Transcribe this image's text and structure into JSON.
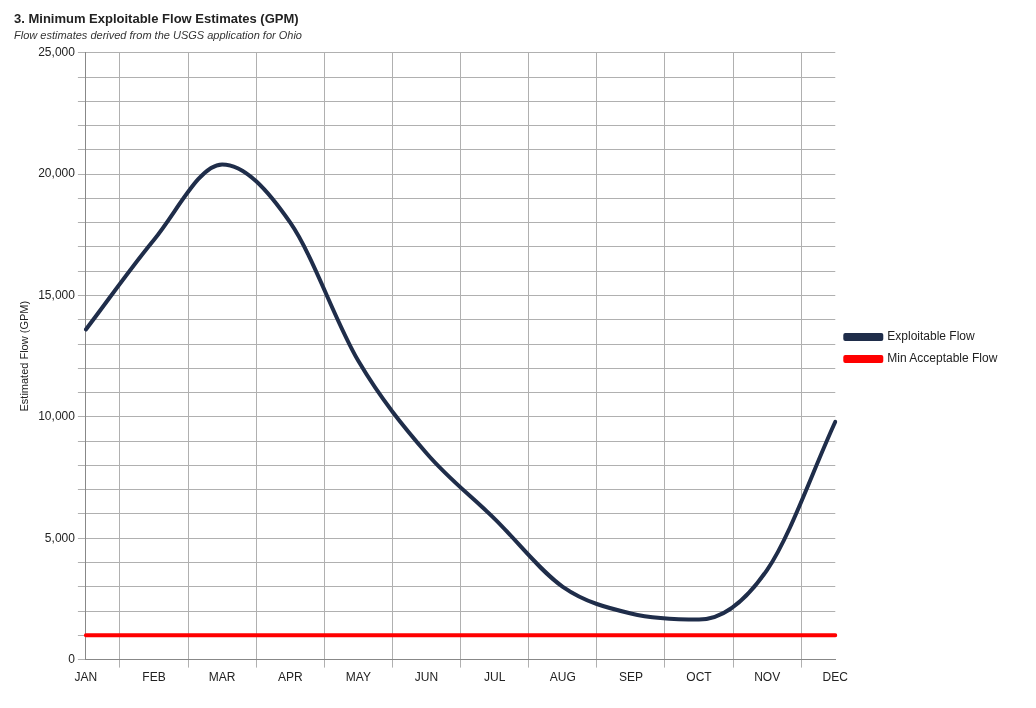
{
  "chart_data": {
    "type": "line",
    "title": "3. Minimum Exploitable Flow Estimates (GPM)",
    "subtitle": "Flow estimates derived from the USGS application for Ohio",
    "ylabel": "Estimated Flow (GPM)",
    "categories": [
      "JAN",
      "FEB",
      "MAR",
      "APR",
      "MAY",
      "JUN",
      "JUL",
      "AUG",
      "SEP",
      "OCT",
      "NOV",
      "DEC"
    ],
    "series": [
      {
        "name": "Exploitable Flow",
        "color": "#1f2d4a",
        "values": [
          13600,
          17300,
          20400,
          18000,
          12300,
          8500,
          5800,
          3000,
          1900,
          1650,
          3700,
          9800
        ]
      },
      {
        "name": "Min Acceptable Flow",
        "color": "#ff0000",
        "values": [
          1000,
          1000,
          1000,
          1000,
          1000,
          1000,
          1000,
          1000,
          1000,
          1000,
          1000,
          1000
        ]
      }
    ],
    "ylim": [
      0,
      25000
    ],
    "yticks": [
      0,
      {
        "value": 1000,
        "label": null
      },
      {
        "value": 2000,
        "label": null
      },
      {
        "value": 3000,
        "label": null
      },
      {
        "value": 4000,
        "label": null
      },
      {
        "value": 5000,
        "label": "5,000"
      },
      {
        "value": 6000,
        "label": null
      },
      {
        "value": 7000,
        "label": null
      },
      {
        "value": 8000,
        "label": null
      },
      {
        "value": 9000,
        "label": null
      },
      {
        "value": 10000,
        "label": "10,000"
      },
      {
        "value": 11000,
        "label": null
      },
      {
        "value": 12000,
        "label": null
      },
      {
        "value": 13000,
        "label": null
      },
      {
        "value": 14000,
        "label": null
      },
      {
        "value": 15000,
        "label": "15,000"
      },
      {
        "value": 16000,
        "label": null
      },
      {
        "value": 17000,
        "label": null
      },
      {
        "value": 18000,
        "label": null
      },
      {
        "value": 19000,
        "label": null
      },
      {
        "value": 20000,
        "label": "20,000"
      },
      {
        "value": 21000,
        "label": null
      },
      {
        "value": 22000,
        "label": null
      },
      {
        "value": 23000,
        "label": null
      },
      {
        "value": 24000,
        "label": null
      },
      {
        "value": 25000,
        "label": "25,000"
      }
    ],
    "grid": true,
    "legend": "right",
    "marker": "none",
    "line_style": "solid"
  }
}
